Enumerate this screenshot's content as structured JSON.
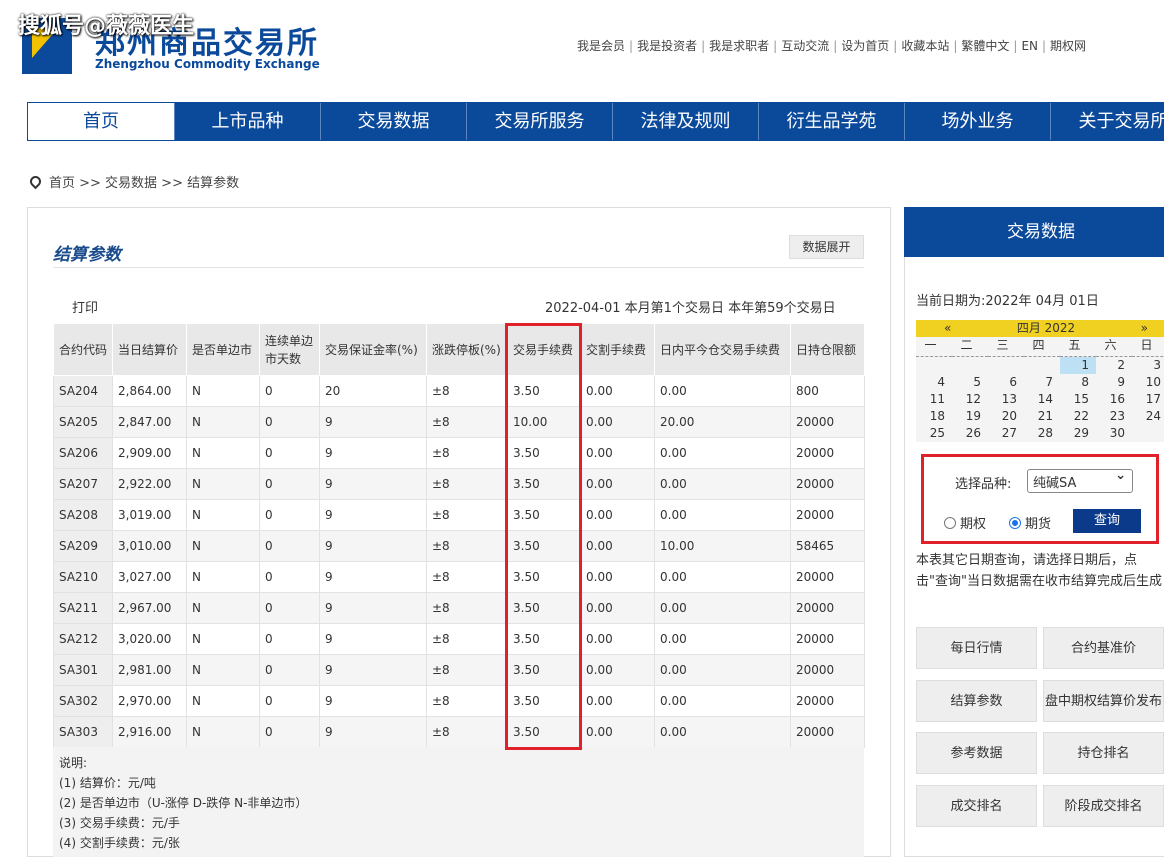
{
  "watermark": "搜狐号@薇薇医生",
  "logo": {
    "cn": "郑州商品交易所",
    "en": "Zhengzhou Commodity Exchange"
  },
  "toplinks": [
    "我是会员",
    "我是投资者",
    "我是求职者",
    "互动交流",
    "设为首页",
    "收藏本站",
    "繁體中文",
    "EN",
    "期权网"
  ],
  "nav": [
    "首页",
    "上市品种",
    "交易数据",
    "交易所服务",
    "法律及规则",
    "衍生品学苑",
    "场外业务",
    "关于交易所"
  ],
  "breadcrumb": "首页 >> 交易数据 >> 结算参数",
  "main": {
    "title": "结算参数",
    "expand": "数据展开",
    "print": "打印",
    "dateinfo": "2022-04-01  本月第1个交易日  本年第59个交易日",
    "headers": [
      "合约代码",
      "当日结算价",
      "是否单边市",
      "连续单边市天数",
      "交易保证金率(%)",
      "涨跌停板(%)",
      "交易手续费",
      "交割手续费",
      "日内平今仓交易手续费",
      "日持仓限额"
    ],
    "rows": [
      [
        "SA204",
        "2,864.00",
        "N",
        "0",
        "20",
        "±8",
        "3.50",
        "0.00",
        "0.00",
        "800"
      ],
      [
        "SA205",
        "2,847.00",
        "N",
        "0",
        "9",
        "±8",
        "10.00",
        "0.00",
        "20.00",
        "20000"
      ],
      [
        "SA206",
        "2,909.00",
        "N",
        "0",
        "9",
        "±8",
        "3.50",
        "0.00",
        "0.00",
        "20000"
      ],
      [
        "SA207",
        "2,922.00",
        "N",
        "0",
        "9",
        "±8",
        "3.50",
        "0.00",
        "0.00",
        "20000"
      ],
      [
        "SA208",
        "3,019.00",
        "N",
        "0",
        "9",
        "±8",
        "3.50",
        "0.00",
        "0.00",
        "20000"
      ],
      [
        "SA209",
        "3,010.00",
        "N",
        "0",
        "9",
        "±8",
        "3.50",
        "0.00",
        "10.00",
        "58465"
      ],
      [
        "SA210",
        "3,027.00",
        "N",
        "0",
        "9",
        "±8",
        "3.50",
        "0.00",
        "0.00",
        "20000"
      ],
      [
        "SA211",
        "2,967.00",
        "N",
        "0",
        "9",
        "±8",
        "3.50",
        "0.00",
        "0.00",
        "20000"
      ],
      [
        "SA212",
        "3,020.00",
        "N",
        "0",
        "9",
        "±8",
        "3.50",
        "0.00",
        "0.00",
        "20000"
      ],
      [
        "SA301",
        "2,981.00",
        "N",
        "0",
        "9",
        "±8",
        "3.50",
        "0.00",
        "0.00",
        "20000"
      ],
      [
        "SA302",
        "2,970.00",
        "N",
        "0",
        "9",
        "±8",
        "3.50",
        "0.00",
        "0.00",
        "20000"
      ],
      [
        "SA303",
        "2,916.00",
        "N",
        "0",
        "9",
        "±8",
        "3.50",
        "0.00",
        "0.00",
        "20000"
      ]
    ],
    "notes": [
      "说明:",
      "(1) 结算价：元/吨",
      "(2) 是否单边市（U-涨停 D-跌停 N-非单边市）",
      "(3) 交易手续费：元/手",
      "(4) 交割手续费：元/张"
    ]
  },
  "side": {
    "title": "交易数据",
    "curdate": "当前日期为:2022年 04月 01日",
    "calendar": {
      "prev": "«",
      "month": "四月 2022",
      "next": "»",
      "weekdays": [
        "一",
        "二",
        "三",
        "四",
        "五",
        "六",
        "日"
      ],
      "selected": "1",
      "days": [
        "",
        "",
        "",
        "",
        "1",
        "2",
        "3",
        "4",
        "5",
        "6",
        "7",
        "8",
        "9",
        "10",
        "11",
        "12",
        "13",
        "14",
        "15",
        "16",
        "17",
        "18",
        "19",
        "20",
        "21",
        "22",
        "23",
        "24",
        "25",
        "26",
        "27",
        "28",
        "29",
        "30",
        ""
      ]
    },
    "select_label": "选择品种:",
    "select_value": "纯碱SA",
    "radio_option": "期权",
    "radio_future": "期货",
    "radio_selected": "期货",
    "query": "查询",
    "hint": "本表其它日期查询，请选择日期后，点击\"查询\"当日数据需在收市结算完成后生成",
    "buttons": [
      "每日行情",
      "合约基准价",
      "结算参数",
      "盘中期权结算价发布",
      "参考数据",
      "持仓排名",
      "成交排名",
      "阶段成交排名"
    ]
  }
}
